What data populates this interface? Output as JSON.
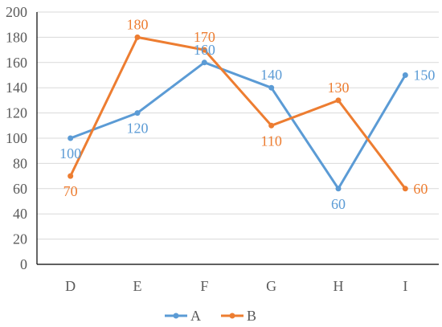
{
  "chart_data": {
    "type": "line",
    "title": "",
    "xlabel": "",
    "ylabel": "",
    "categories": [
      "D",
      "E",
      "F",
      "G",
      "H",
      "I"
    ],
    "ylim": [
      0,
      200
    ],
    "yticks": [
      0,
      20,
      40,
      60,
      80,
      100,
      120,
      140,
      160,
      180,
      200
    ],
    "grid": true,
    "legend_position": "bottom",
    "series": [
      {
        "name": "A",
        "color": "#5B9BD5",
        "values": [
          100,
          120,
          160,
          140,
          60,
          150
        ]
      },
      {
        "name": "B",
        "color": "#ED7D31",
        "values": [
          70,
          180,
          170,
          110,
          130,
          60
        ]
      }
    ]
  }
}
